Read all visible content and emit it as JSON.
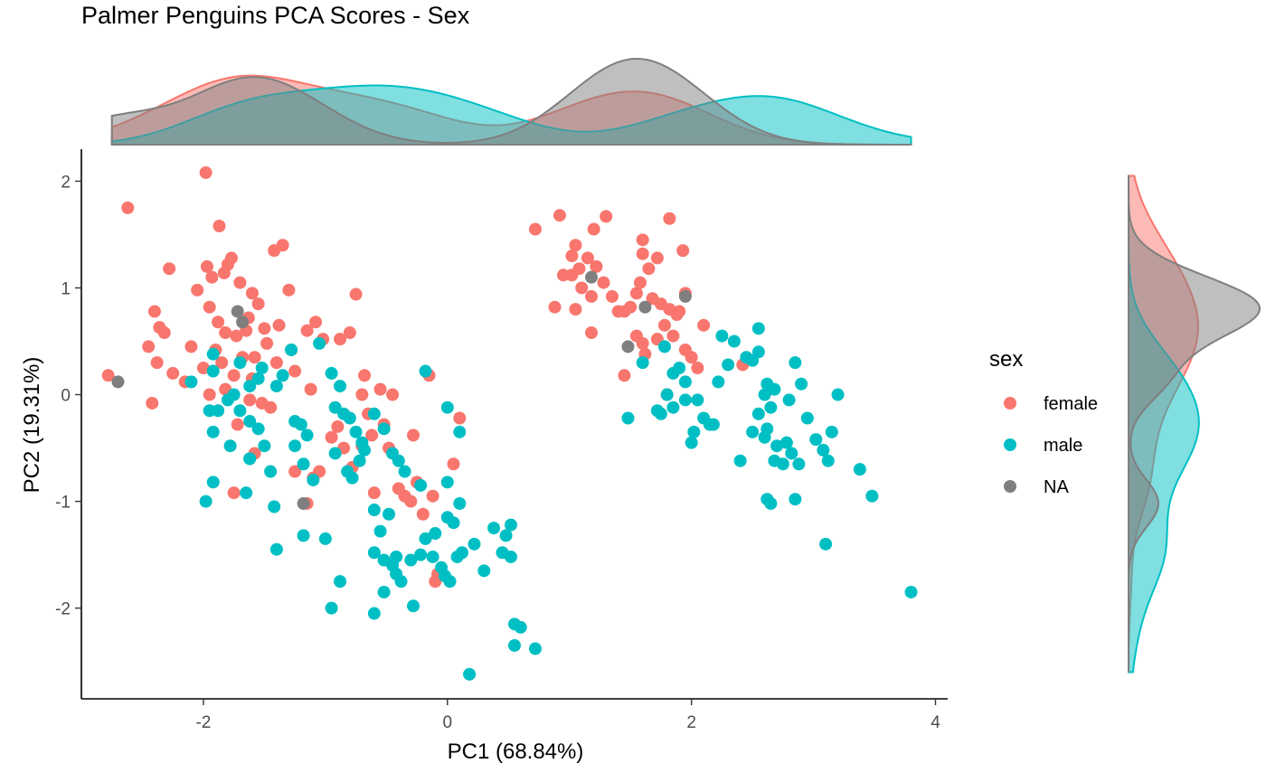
{
  "chart_data": {
    "type": "scatter",
    "title": "Palmer Penguins PCA Scores - Sex",
    "xlabel": "PC1 (68.84%)",
    "ylabel": "PC2 (19.31%)",
    "xlim": [
      -3.0,
      4.1
    ],
    "ylim": [
      -2.85,
      2.3
    ],
    "xticks": [
      -2,
      0,
      2,
      4
    ],
    "yticks": [
      -2,
      -1,
      0,
      1,
      2
    ],
    "grid": false,
    "legend": {
      "title": "sex",
      "position": "right"
    },
    "marginal_density": {
      "top": true,
      "right": true
    },
    "series": [
      {
        "name": "female",
        "color": "#F8766D",
        "points": [
          [
            -2.62,
            1.75
          ],
          [
            -2.28,
            1.18
          ],
          [
            -2.4,
            0.78
          ],
          [
            -2.36,
            0.63
          ],
          [
            -2.32,
            0.58
          ],
          [
            -2.45,
            0.45
          ],
          [
            -2.38,
            0.3
          ],
          [
            -2.42,
            -0.08
          ],
          [
            -1.98,
            2.08
          ],
          [
            -1.87,
            1.58
          ],
          [
            -1.97,
            1.2
          ],
          [
            -1.93,
            1.1
          ],
          [
            -1.77,
            1.28
          ],
          [
            -1.83,
            1.14
          ],
          [
            -2.05,
            0.98
          ],
          [
            -1.95,
            0.82
          ],
          [
            -1.88,
            0.68
          ],
          [
            -1.82,
            0.58
          ],
          [
            -1.73,
            0.55
          ],
          [
            -1.9,
            0.42
          ],
          [
            -2.1,
            0.45
          ],
          [
            -2.0,
            0.25
          ],
          [
            -1.85,
            0.3
          ],
          [
            -1.75,
            0.18
          ],
          [
            -1.6,
            0.15
          ],
          [
            -1.82,
            0.05
          ],
          [
            -1.95,
            0.0
          ],
          [
            -1.62,
            -0.05
          ],
          [
            -1.72,
            -0.28
          ],
          [
            -1.45,
            -0.12
          ],
          [
            -1.58,
            -0.55
          ],
          [
            -1.75,
            -0.92
          ],
          [
            -1.7,
            1.05
          ],
          [
            -1.6,
            0.95
          ],
          [
            -1.55,
            0.85
          ],
          [
            -1.63,
            0.72
          ],
          [
            -1.5,
            0.62
          ],
          [
            -1.48,
            0.48
          ],
          [
            -1.58,
            0.35
          ],
          [
            -1.4,
            0.3
          ],
          [
            -1.35,
            1.4
          ],
          [
            -1.42,
            1.35
          ],
          [
            -1.3,
            0.98
          ],
          [
            -1.38,
            0.65
          ],
          [
            -1.28,
            0.42
          ],
          [
            -1.25,
            0.22
          ],
          [
            -1.15,
            0.6
          ],
          [
            -1.08,
            0.68
          ],
          [
            -1.02,
            0.52
          ],
          [
            -1.12,
            0.05
          ],
          [
            -0.88,
            0.52
          ],
          [
            -0.8,
            0.58
          ],
          [
            -0.75,
            0.94
          ],
          [
            -0.68,
            0.18
          ],
          [
            -0.55,
            0.05
          ],
          [
            -0.45,
            0.0
          ],
          [
            -0.7,
            -0.48
          ],
          [
            -0.62,
            -0.38
          ],
          [
            -0.52,
            -0.28
          ],
          [
            -0.48,
            -0.5
          ],
          [
            -0.4,
            -0.88
          ],
          [
            -0.3,
            -1.0
          ],
          [
            -0.35,
            -0.95
          ],
          [
            -0.28,
            -0.38
          ],
          [
            -0.2,
            -1.12
          ],
          [
            -0.12,
            -0.95
          ],
          [
            -0.08,
            -1.68
          ],
          [
            -0.1,
            -1.75
          ],
          [
            0.05,
            -0.65
          ],
          [
            0.1,
            -0.22
          ],
          [
            -0.15,
            0.18
          ],
          [
            -0.25,
            -0.82
          ],
          [
            -0.95,
            -0.4
          ],
          [
            -0.85,
            -0.5
          ],
          [
            -0.78,
            -0.68
          ],
          [
            -1.05,
            -0.72
          ],
          [
            -1.1,
            -0.78
          ],
          [
            -1.15,
            -1.02
          ],
          [
            -0.6,
            -0.92
          ],
          [
            -0.9,
            -0.3
          ],
          [
            -0.65,
            -0.18
          ],
          [
            -0.7,
            0.0
          ],
          [
            -1.25,
            -0.72
          ],
          [
            -1.52,
            -0.08
          ],
          [
            -1.68,
            0.35
          ],
          [
            -1.65,
            0.6
          ],
          [
            -1.8,
            1.22
          ],
          [
            -2.15,
            0.12
          ],
          [
            -2.25,
            0.2
          ],
          [
            -2.78,
            0.18
          ],
          [
            0.72,
            1.55
          ],
          [
            0.92,
            1.68
          ],
          [
            1.05,
            1.4
          ],
          [
            1.2,
            1.55
          ],
          [
            1.3,
            1.67
          ],
          [
            1.02,
            1.3
          ],
          [
            1.15,
            1.28
          ],
          [
            1.08,
            1.18
          ],
          [
            1.02,
            1.12
          ],
          [
            0.95,
            1.12
          ],
          [
            1.1,
            1.0
          ],
          [
            1.18,
            0.92
          ],
          [
            1.22,
            1.2
          ],
          [
            1.28,
            1.05
          ],
          [
            1.35,
            0.92
          ],
          [
            1.4,
            0.78
          ],
          [
            1.5,
            0.82
          ],
          [
            1.55,
            0.95
          ],
          [
            1.58,
            1.05
          ],
          [
            1.65,
            1.18
          ],
          [
            1.72,
            1.28
          ],
          [
            1.6,
            1.45
          ],
          [
            1.6,
            1.32
          ],
          [
            1.68,
            0.9
          ],
          [
            1.75,
            0.85
          ],
          [
            1.82,
            0.8
          ],
          [
            1.88,
            0.75
          ],
          [
            1.78,
            0.65
          ],
          [
            1.72,
            0.52
          ],
          [
            1.6,
            0.48
          ],
          [
            1.55,
            0.55
          ],
          [
            1.62,
            0.38
          ],
          [
            1.82,
            1.65
          ],
          [
            1.93,
            1.35
          ],
          [
            1.95,
            0.95
          ],
          [
            1.9,
            0.78
          ],
          [
            1.85,
            0.55
          ],
          [
            1.95,
            0.42
          ],
          [
            2.0,
            0.35
          ],
          [
            2.05,
            0.25
          ],
          [
            2.1,
            0.65
          ],
          [
            1.8,
            0.0
          ],
          [
            0.88,
            0.82
          ],
          [
            1.05,
            0.8
          ],
          [
            1.18,
            0.58
          ],
          [
            1.45,
            0.78
          ],
          [
            2.42,
            0.28
          ],
          [
            1.45,
            0.18
          ]
        ]
      },
      {
        "name": "male",
        "color": "#00BFC4",
        "points": [
          [
            -1.92,
            0.38
          ],
          [
            -1.7,
            0.3
          ],
          [
            -1.52,
            0.25
          ],
          [
            -1.55,
            0.15
          ],
          [
            -1.62,
            0.08
          ],
          [
            -1.8,
            -0.05
          ],
          [
            -1.75,
            0.0
          ],
          [
            -1.88,
            -0.15
          ],
          [
            -1.95,
            -0.15
          ],
          [
            -1.92,
            -0.35
          ],
          [
            -1.7,
            -0.15
          ],
          [
            -1.62,
            -0.25
          ],
          [
            -1.55,
            -0.32
          ],
          [
            -1.5,
            -0.48
          ],
          [
            -1.78,
            -0.48
          ],
          [
            -1.62,
            -0.6
          ],
          [
            -1.92,
            -0.82
          ],
          [
            -1.98,
            -1.0
          ],
          [
            -1.65,
            -0.92
          ],
          [
            -1.42,
            -1.05
          ],
          [
            -1.4,
            -1.45
          ],
          [
            -1.18,
            -1.32
          ],
          [
            -1.25,
            -0.25
          ],
          [
            -1.2,
            -0.28
          ],
          [
            -1.15,
            -0.38
          ],
          [
            -1.25,
            -0.48
          ],
          [
            -1.18,
            -0.65
          ],
          [
            -1.1,
            -0.8
          ],
          [
            -1.28,
            0.42
          ],
          [
            -1.05,
            0.48
          ],
          [
            -0.95,
            0.2
          ],
          [
            -0.88,
            0.08
          ],
          [
            -0.92,
            -0.12
          ],
          [
            -0.85,
            -0.18
          ],
          [
            -0.8,
            -0.22
          ],
          [
            -0.75,
            -0.35
          ],
          [
            -0.7,
            -0.45
          ],
          [
            -0.68,
            -0.52
          ],
          [
            -0.72,
            -0.62
          ],
          [
            -0.82,
            -0.72
          ],
          [
            -0.78,
            -0.78
          ],
          [
            -0.92,
            -0.55
          ],
          [
            -0.6,
            -1.08
          ],
          [
            -0.48,
            -1.12
          ],
          [
            -0.55,
            -1.28
          ],
          [
            -0.6,
            -1.48
          ],
          [
            -0.52,
            -1.55
          ],
          [
            -0.45,
            -1.6
          ],
          [
            -0.42,
            -1.52
          ],
          [
            -0.3,
            -1.55
          ],
          [
            -0.22,
            -1.5
          ],
          [
            -0.18,
            -1.35
          ],
          [
            -0.1,
            -1.3
          ],
          [
            -0.05,
            -1.62
          ],
          [
            -0.02,
            -1.7
          ],
          [
            0.02,
            -1.75
          ],
          [
            0.08,
            -1.52
          ],
          [
            0.12,
            -1.48
          ],
          [
            0.22,
            -1.4
          ],
          [
            0.3,
            -1.65
          ],
          [
            0.38,
            -1.25
          ],
          [
            0.45,
            -1.48
          ],
          [
            0.48,
            -1.32
          ],
          [
            0.52,
            -1.52
          ],
          [
            0.52,
            -1.22
          ],
          [
            0.55,
            -2.15
          ],
          [
            0.6,
            -2.18
          ],
          [
            0.55,
            -2.35
          ],
          [
            0.72,
            -2.38
          ],
          [
            0.18,
            -2.62
          ],
          [
            -0.38,
            -1.75
          ],
          [
            -0.42,
            -1.68
          ],
          [
            -0.52,
            -1.85
          ],
          [
            -0.6,
            -2.05
          ],
          [
            -0.88,
            -1.75
          ],
          [
            -0.95,
            -2.0
          ],
          [
            -0.28,
            -1.98
          ],
          [
            -0.12,
            -1.52
          ],
          [
            0.0,
            -1.15
          ],
          [
            0.05,
            -1.2
          ],
          [
            0.1,
            -1.02
          ],
          [
            0.0,
            -0.82
          ],
          [
            -0.22,
            -0.85
          ],
          [
            -0.35,
            -0.72
          ],
          [
            -0.4,
            -0.62
          ],
          [
            -0.45,
            -0.55
          ],
          [
            -0.52,
            -0.32
          ],
          [
            -0.6,
            -0.18
          ],
          [
            0.0,
            -0.12
          ],
          [
            0.1,
            -0.35
          ],
          [
            -0.18,
            0.22
          ],
          [
            -1.45,
            -0.72
          ],
          [
            -1.0,
            -1.35
          ],
          [
            -1.35,
            0.18
          ],
          [
            -1.4,
            0.08
          ],
          [
            -1.92,
            0.22
          ],
          [
            -2.1,
            0.12
          ],
          [
            -1.62,
            -0.6
          ],
          [
            1.48,
            -0.22
          ],
          [
            1.75,
            -0.18
          ],
          [
            1.8,
            0.0
          ],
          [
            1.85,
            -0.12
          ],
          [
            1.95,
            -0.05
          ],
          [
            2.05,
            -0.05
          ],
          [
            2.02,
            -0.35
          ],
          [
            2.1,
            -0.22
          ],
          [
            2.15,
            -0.28
          ],
          [
            2.22,
            0.12
          ],
          [
            2.3,
            0.28
          ],
          [
            2.25,
            0.55
          ],
          [
            2.35,
            0.5
          ],
          [
            2.45,
            0.35
          ],
          [
            2.5,
            0.32
          ],
          [
            2.55,
            0.4
          ],
          [
            2.55,
            0.62
          ],
          [
            2.62,
            0.1
          ],
          [
            2.68,
            0.05
          ],
          [
            2.6,
            0.0
          ],
          [
            2.55,
            -0.18
          ],
          [
            2.5,
            -0.35
          ],
          [
            2.6,
            -0.4
          ],
          [
            2.7,
            -0.48
          ],
          [
            2.78,
            -0.45
          ],
          [
            2.82,
            -0.55
          ],
          [
            2.88,
            -0.65
          ],
          [
            2.75,
            -0.65
          ],
          [
            2.68,
            -0.62
          ],
          [
            2.62,
            -0.32
          ],
          [
            2.65,
            -0.12
          ],
          [
            2.85,
            0.3
          ],
          [
            2.9,
            0.1
          ],
          [
            2.95,
            -0.22
          ],
          [
            3.02,
            -0.42
          ],
          [
            3.08,
            -0.52
          ],
          [
            3.12,
            -0.62
          ],
          [
            3.15,
            -0.35
          ],
          [
            3.2,
            0.0
          ],
          [
            2.85,
            -0.98
          ],
          [
            2.62,
            -0.98
          ],
          [
            2.65,
            -1.02
          ],
          [
            2.4,
            -0.62
          ],
          [
            3.38,
            -0.7
          ],
          [
            3.48,
            -0.95
          ],
          [
            3.1,
            -1.4
          ],
          [
            3.8,
            -1.85
          ],
          [
            2.18,
            -0.28
          ],
          [
            1.9,
            0.25
          ],
          [
            2.0,
            -0.45
          ],
          [
            1.72,
            -0.15
          ],
          [
            1.95,
            0.12
          ],
          [
            1.6,
            0.3
          ],
          [
            1.78,
            0.45
          ],
          [
            1.85,
            0.2
          ],
          [
            2.8,
            -0.05
          ]
        ]
      },
      {
        "name": "NA",
        "color": "#7F7F7F",
        "points": [
          [
            -2.7,
            0.12
          ],
          [
            -1.72,
            0.78
          ],
          [
            -1.68,
            0.68
          ],
          [
            -1.18,
            -1.02
          ],
          [
            1.18,
            1.1
          ],
          [
            1.62,
            0.82
          ],
          [
            1.95,
            0.92
          ],
          [
            1.48,
            0.45
          ]
        ]
      }
    ]
  }
}
